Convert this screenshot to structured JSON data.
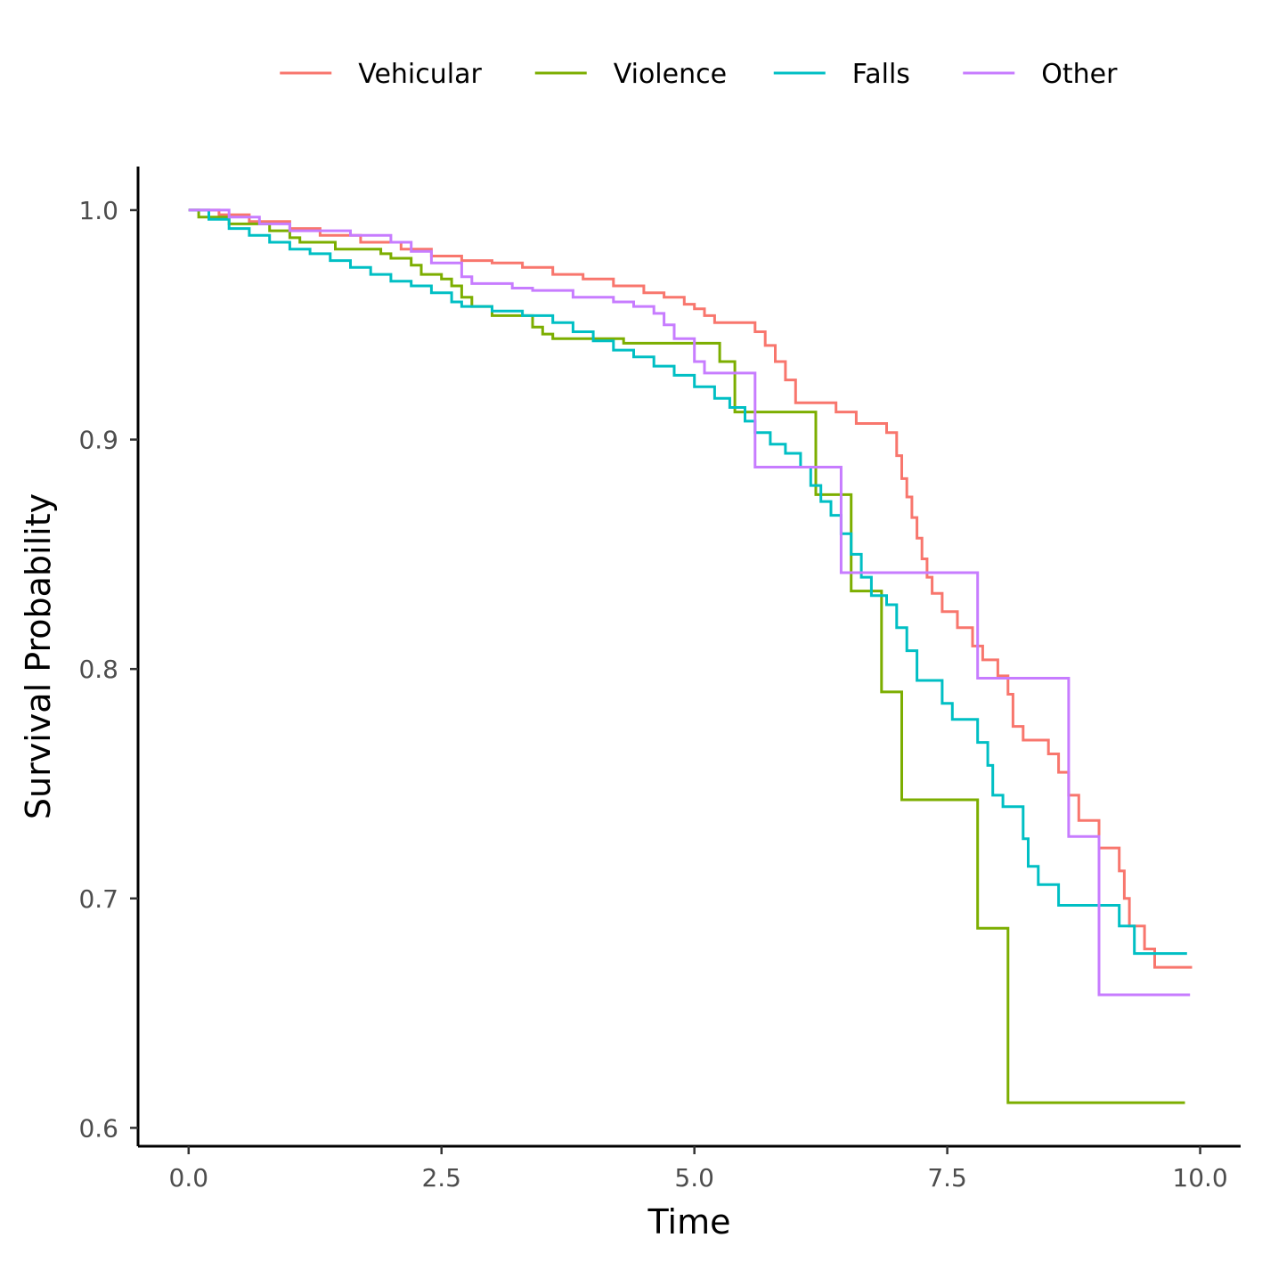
{
  "chart_data": {
    "type": "line",
    "subtype": "step (Kaplan-Meier survival curves)",
    "title": "",
    "xlabel": "Time",
    "ylabel": "Survival Probability",
    "xlim": [
      -0.5,
      10.4
    ],
    "ylim": [
      0.592,
      1.019
    ],
    "x_ticks": [
      0,
      2.5,
      5,
      7.5,
      10
    ],
    "x_tick_labels": [
      "0.0",
      "2.5",
      "5.0",
      "7.5",
      "10.0"
    ],
    "y_ticks": [
      0.6,
      0.7,
      0.8,
      0.9,
      1.0
    ],
    "y_tick_labels": [
      "0.6",
      "0.7",
      "0.8",
      "0.9",
      "1.0"
    ],
    "grid": false,
    "legend_position": "top",
    "series": [
      {
        "name": "Vehicular",
        "color": "#F8766D",
        "points": [
          [
            0,
            1.0
          ],
          [
            0.3,
            0.998
          ],
          [
            0.6,
            0.995
          ],
          [
            1.0,
            0.992
          ],
          [
            1.3,
            0.989
          ],
          [
            1.7,
            0.986
          ],
          [
            2.1,
            0.983
          ],
          [
            2.4,
            0.98
          ],
          [
            2.7,
            0.978
          ],
          [
            3.0,
            0.977
          ],
          [
            3.3,
            0.975
          ],
          [
            3.6,
            0.972
          ],
          [
            3.9,
            0.97
          ],
          [
            4.2,
            0.967
          ],
          [
            4.5,
            0.964
          ],
          [
            4.7,
            0.962
          ],
          [
            4.9,
            0.959
          ],
          [
            5.0,
            0.957
          ],
          [
            5.1,
            0.954
          ],
          [
            5.2,
            0.951
          ],
          [
            5.6,
            0.947
          ],
          [
            5.7,
            0.941
          ],
          [
            5.8,
            0.934
          ],
          [
            5.9,
            0.926
          ],
          [
            6.0,
            0.916
          ],
          [
            6.4,
            0.912
          ],
          [
            6.6,
            0.907
          ],
          [
            6.9,
            0.903
          ],
          [
            7.0,
            0.893
          ],
          [
            7.05,
            0.883
          ],
          [
            7.1,
            0.875
          ],
          [
            7.15,
            0.866
          ],
          [
            7.2,
            0.857
          ],
          [
            7.25,
            0.848
          ],
          [
            7.3,
            0.84
          ],
          [
            7.35,
            0.833
          ],
          [
            7.45,
            0.825
          ],
          [
            7.6,
            0.818
          ],
          [
            7.75,
            0.81
          ],
          [
            7.85,
            0.804
          ],
          [
            8.0,
            0.797
          ],
          [
            8.1,
            0.789
          ],
          [
            8.15,
            0.775
          ],
          [
            8.25,
            0.769
          ],
          [
            8.5,
            0.763
          ],
          [
            8.6,
            0.755
          ],
          [
            8.7,
            0.745
          ],
          [
            8.8,
            0.734
          ],
          [
            9.0,
            0.722
          ],
          [
            9.2,
            0.712
          ],
          [
            9.25,
            0.7
          ],
          [
            9.3,
            0.688
          ],
          [
            9.45,
            0.678
          ],
          [
            9.55,
            0.67
          ],
          [
            9.92,
            0.67
          ]
        ]
      },
      {
        "name": "Violence",
        "color": "#7CAE00",
        "points": [
          [
            0,
            1.0
          ],
          [
            0.1,
            0.997
          ],
          [
            0.4,
            0.994
          ],
          [
            0.8,
            0.991
          ],
          [
            1.0,
            0.988
          ],
          [
            1.1,
            0.986
          ],
          [
            1.45,
            0.983
          ],
          [
            1.9,
            0.981
          ],
          [
            2.0,
            0.979
          ],
          [
            2.2,
            0.976
          ],
          [
            2.3,
            0.972
          ],
          [
            2.5,
            0.97
          ],
          [
            2.6,
            0.967
          ],
          [
            2.7,
            0.962
          ],
          [
            2.8,
            0.958
          ],
          [
            3.0,
            0.954
          ],
          [
            3.4,
            0.949
          ],
          [
            3.5,
            0.946
          ],
          [
            3.6,
            0.944
          ],
          [
            4.3,
            0.942
          ],
          [
            5.25,
            0.934
          ],
          [
            5.4,
            0.912
          ],
          [
            6.2,
            0.876
          ],
          [
            6.55,
            0.834
          ],
          [
            6.85,
            0.79
          ],
          [
            7.05,
            0.743
          ],
          [
            7.8,
            0.687
          ],
          [
            8.1,
            0.611
          ],
          [
            9.85,
            0.611
          ]
        ]
      },
      {
        "name": "Falls",
        "color": "#00BFC4",
        "points": [
          [
            0,
            1.0
          ],
          [
            0.2,
            0.996
          ],
          [
            0.4,
            0.992
          ],
          [
            0.6,
            0.989
          ],
          [
            0.8,
            0.986
          ],
          [
            1.0,
            0.983
          ],
          [
            1.2,
            0.981
          ],
          [
            1.4,
            0.978
          ],
          [
            1.6,
            0.975
          ],
          [
            1.8,
            0.972
          ],
          [
            2.0,
            0.969
          ],
          [
            2.2,
            0.967
          ],
          [
            2.4,
            0.964
          ],
          [
            2.6,
            0.96
          ],
          [
            2.7,
            0.958
          ],
          [
            3.0,
            0.956
          ],
          [
            3.3,
            0.954
          ],
          [
            3.6,
            0.951
          ],
          [
            3.8,
            0.947
          ],
          [
            4.0,
            0.943
          ],
          [
            4.2,
            0.939
          ],
          [
            4.4,
            0.936
          ],
          [
            4.6,
            0.932
          ],
          [
            4.8,
            0.928
          ],
          [
            5.0,
            0.923
          ],
          [
            5.2,
            0.918
          ],
          [
            5.35,
            0.914
          ],
          [
            5.5,
            0.908
          ],
          [
            5.6,
            0.903
          ],
          [
            5.75,
            0.898
          ],
          [
            5.9,
            0.894
          ],
          [
            6.05,
            0.888
          ],
          [
            6.15,
            0.88
          ],
          [
            6.25,
            0.873
          ],
          [
            6.35,
            0.867
          ],
          [
            6.45,
            0.859
          ],
          [
            6.55,
            0.85
          ],
          [
            6.65,
            0.84
          ],
          [
            6.75,
            0.832
          ],
          [
            6.9,
            0.828
          ],
          [
            7.0,
            0.818
          ],
          [
            7.1,
            0.808
          ],
          [
            7.2,
            0.795
          ],
          [
            7.45,
            0.785
          ],
          [
            7.55,
            0.778
          ],
          [
            7.8,
            0.768
          ],
          [
            7.9,
            0.758
          ],
          [
            7.95,
            0.745
          ],
          [
            8.05,
            0.74
          ],
          [
            8.25,
            0.726
          ],
          [
            8.3,
            0.714
          ],
          [
            8.4,
            0.706
          ],
          [
            8.6,
            0.697
          ],
          [
            9.2,
            0.688
          ],
          [
            9.35,
            0.676
          ],
          [
            9.87,
            0.676
          ]
        ]
      },
      {
        "name": "Other",
        "color": "#C77CFF",
        "points": [
          [
            0,
            1.0
          ],
          [
            0.4,
            0.997
          ],
          [
            0.7,
            0.994
          ],
          [
            1.0,
            0.991
          ],
          [
            1.6,
            0.989
          ],
          [
            2.0,
            0.986
          ],
          [
            2.2,
            0.982
          ],
          [
            2.4,
            0.977
          ],
          [
            2.7,
            0.971
          ],
          [
            2.8,
            0.968
          ],
          [
            3.2,
            0.966
          ],
          [
            3.4,
            0.965
          ],
          [
            3.8,
            0.962
          ],
          [
            4.2,
            0.96
          ],
          [
            4.4,
            0.958
          ],
          [
            4.6,
            0.955
          ],
          [
            4.7,
            0.95
          ],
          [
            4.8,
            0.944
          ],
          [
            5.0,
            0.934
          ],
          [
            5.1,
            0.929
          ],
          [
            5.6,
            0.888
          ],
          [
            6.45,
            0.842
          ],
          [
            7.8,
            0.796
          ],
          [
            8.7,
            0.727
          ],
          [
            9.0,
            0.658
          ],
          [
            9.9,
            0.658
          ]
        ]
      }
    ]
  }
}
